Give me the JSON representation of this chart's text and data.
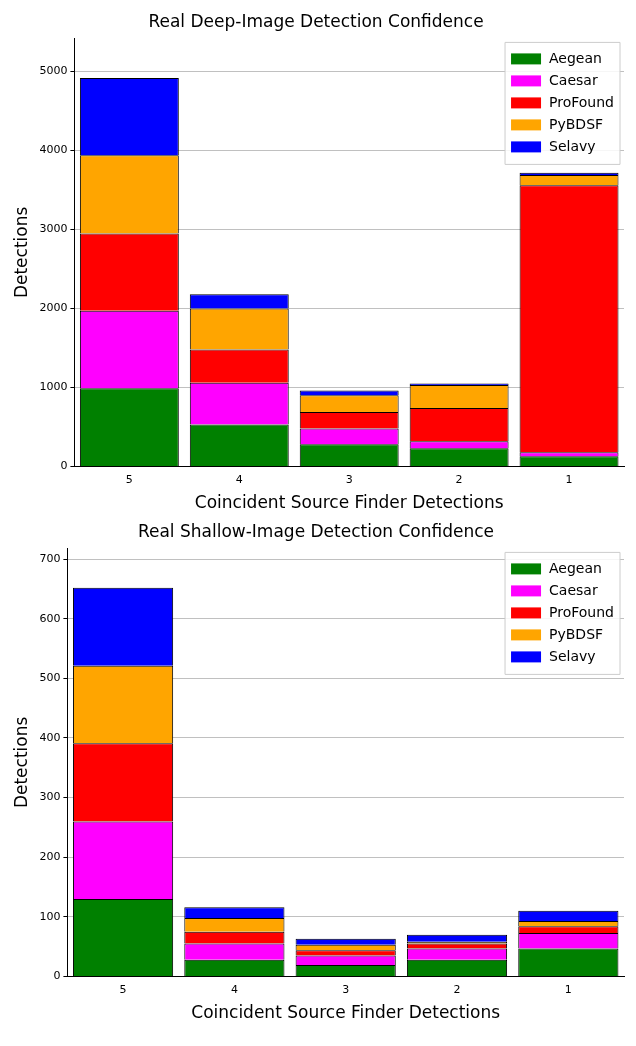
{
  "chart_data": [
    {
      "type": "bar",
      "title": "Real Deep-Image Detection Confidence",
      "xlabel": "Coincident Source Finder Detections",
      "ylabel": "Detections",
      "categories": [
        "5",
        "4",
        "3",
        "2",
        "1"
      ],
      "stacked": true,
      "ylim": [
        0,
        5420
      ],
      "yticks": [
        0,
        1000,
        2000,
        3000,
        4000,
        5000
      ],
      "grid": "y",
      "legend": "top right",
      "series": [
        {
          "name": "Aegean",
          "color": "#008000",
          "values": [
            990,
            530,
            280,
            230,
            130
          ]
        },
        {
          "name": "Caesar",
          "color": "#ff00ff",
          "values": [
            980,
            530,
            200,
            90,
            50
          ]
        },
        {
          "name": "ProFound",
          "color": "#ff0000",
          "values": [
            980,
            420,
            210,
            420,
            3380
          ]
        },
        {
          "name": "PyBDSF",
          "color": "#ffa500",
          "values": [
            990,
            520,
            210,
            290,
            130
          ]
        },
        {
          "name": "Selavy",
          "color": "#0000ff",
          "values": [
            980,
            180,
            60,
            20,
            30
          ]
        }
      ]
    },
    {
      "type": "bar",
      "title": "Real Shallow-Image Detection Confidence",
      "xlabel": "Coincident Source Finder Detections",
      "ylabel": "Detections",
      "categories": [
        "5",
        "4",
        "3",
        "2",
        "1"
      ],
      "stacked": true,
      "ylim": [
        0,
        718
      ],
      "yticks": [
        0,
        100,
        200,
        300,
        400,
        500,
        600,
        700
      ],
      "grid": "y",
      "legend": "top right",
      "series": [
        {
          "name": "Aegean",
          "color": "#008000",
          "values": [
            130,
            28,
            19,
            28,
            47
          ]
        },
        {
          "name": "Caesar",
          "color": "#ff00ff",
          "values": [
            130,
            27,
            16,
            19,
            26
          ]
        },
        {
          "name": "ProFound",
          "color": "#ff0000",
          "values": [
            131,
            20,
            9,
            8,
            11
          ]
        },
        {
          "name": "PyBDSF",
          "color": "#ffa500",
          "values": [
            130,
            23,
            9,
            3,
            9
          ]
        },
        {
          "name": "Selavy",
          "color": "#0000ff",
          "values": [
            131,
            18,
            10,
            12,
            17
          ]
        }
      ]
    }
  ]
}
